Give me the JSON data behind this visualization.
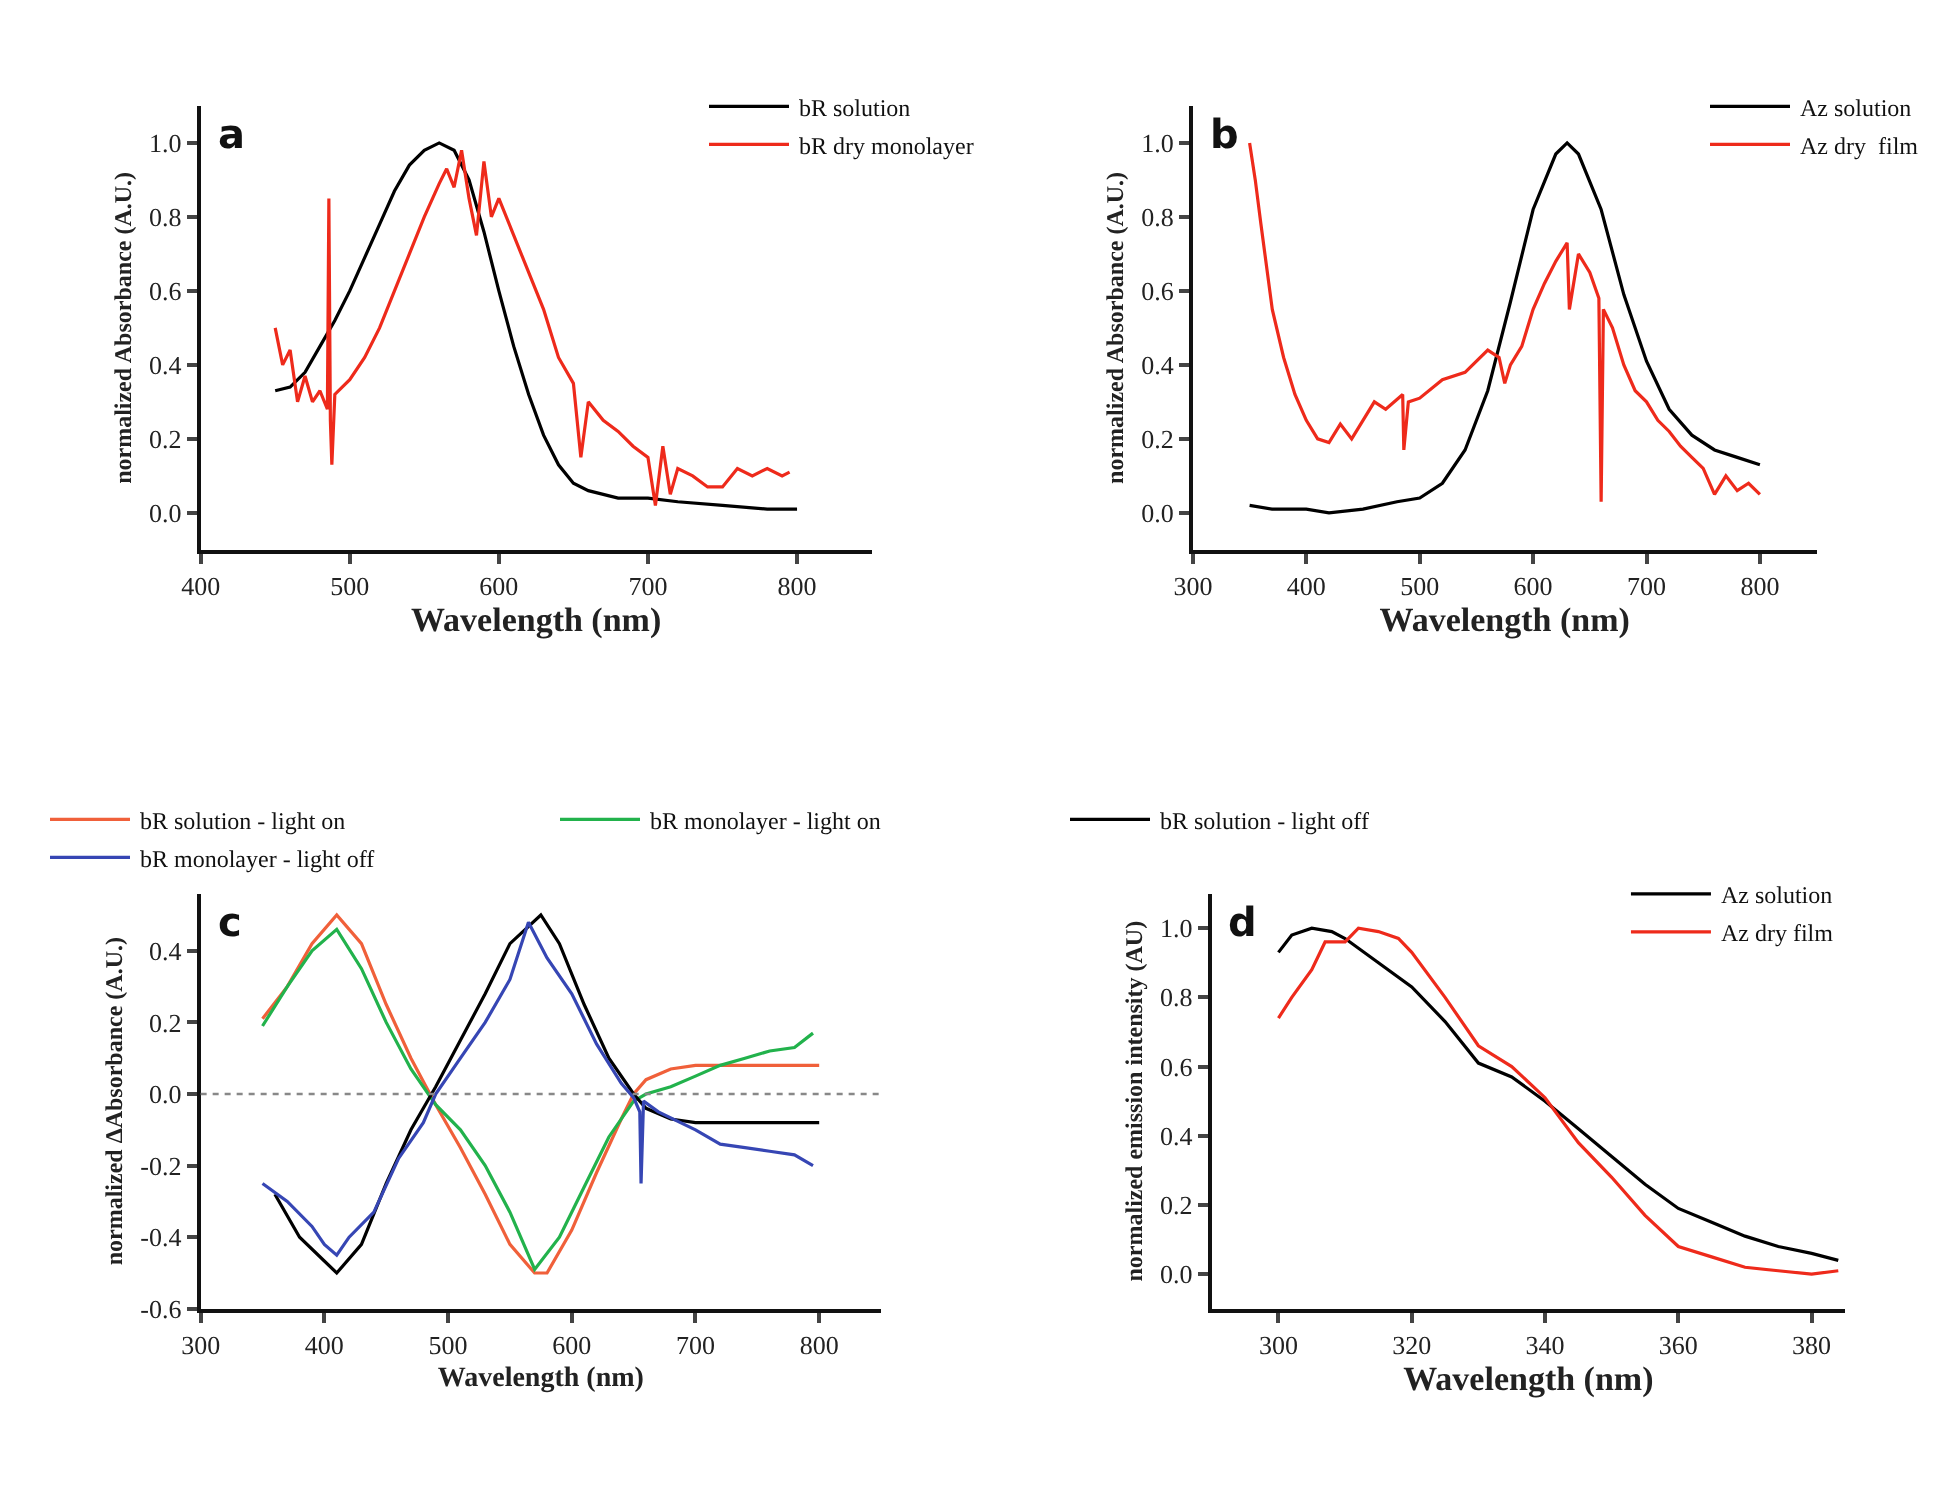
{
  "chart_data": [
    {
      "type": "line",
      "annotations": [
        "a"
      ],
      "xlabel": "Wavelength (nm)",
      "ylabel": "normalized Absorbance (A.U.)",
      "xlim": [
        400,
        850
      ],
      "xticks": [
        400,
        500,
        600,
        700,
        800
      ],
      "ylim": [
        -0.1,
        1.1
      ],
      "yticks": [
        {
          "value": 0,
          "label": "0.0"
        },
        {
          "value": 0.2,
          "label": "0.2"
        },
        {
          "value": 0.4,
          "label": "0.4"
        },
        {
          "value": 0.6,
          "label": "0.6"
        },
        {
          "value": 0.8,
          "label": "0.8"
        },
        {
          "value": 1,
          "label": "1.0"
        }
      ],
      "legend": "top right",
      "series": [
        {
          "name": "bR solution",
          "color": "#000000",
          "x": [
            450,
            460,
            470,
            480,
            490,
            500,
            510,
            520,
            530,
            540,
            550,
            560,
            570,
            580,
            590,
            600,
            610,
            620,
            630,
            640,
            650,
            660,
            680,
            700,
            720,
            750,
            780,
            800
          ],
          "values": [
            0.33,
            0.34,
            0.38,
            0.45,
            0.52,
            0.6,
            0.69,
            0.78,
            0.87,
            0.94,
            0.98,
            1.0,
            0.98,
            0.9,
            0.76,
            0.6,
            0.45,
            0.32,
            0.21,
            0.13,
            0.08,
            0.06,
            0.04,
            0.04,
            0.03,
            0.02,
            0.01,
            0.01
          ]
        },
        {
          "name": "bR dry monolayer",
          "color": "#ee2a1b",
          "x": [
            450,
            455,
            460,
            465,
            470,
            475,
            480,
            485,
            486,
            487,
            488,
            490,
            500,
            510,
            520,
            530,
            540,
            550,
            560,
            565,
            570,
            575,
            580,
            585,
            590,
            595,
            600,
            610,
            620,
            630,
            640,
            650,
            655,
            660,
            670,
            680,
            690,
            700,
            705,
            710,
            715,
            720,
            730,
            740,
            750,
            760,
            770,
            780,
            790,
            795
          ],
          "values": [
            0.5,
            0.4,
            0.44,
            0.3,
            0.37,
            0.3,
            0.33,
            0.28,
            0.85,
            0.25,
            0.13,
            0.32,
            0.36,
            0.42,
            0.5,
            0.6,
            0.7,
            0.8,
            0.89,
            0.93,
            0.88,
            0.98,
            0.85,
            0.75,
            0.95,
            0.8,
            0.85,
            0.75,
            0.65,
            0.55,
            0.42,
            0.35,
            0.15,
            0.3,
            0.25,
            0.22,
            0.18,
            0.15,
            0.02,
            0.18,
            0.05,
            0.12,
            0.1,
            0.07,
            0.07,
            0.12,
            0.1,
            0.12,
            0.1,
            0.11
          ]
        }
      ]
    },
    {
      "type": "line",
      "annotations": [
        "b"
      ],
      "xlabel": "Wavelength (nm)",
      "ylabel": "normalized Absorbance (A.U.)",
      "xlim": [
        300,
        850
      ],
      "xticks": [
        300,
        400,
        500,
        600,
        700,
        800
      ],
      "ylim": [
        -0.1,
        1.1
      ],
      "yticks": [
        {
          "value": 0,
          "label": "0.0"
        },
        {
          "value": 0.2,
          "label": "0.2"
        },
        {
          "value": 0.4,
          "label": "0.4"
        },
        {
          "value": 0.6,
          "label": "0.6"
        },
        {
          "value": 0.8,
          "label": "0.8"
        },
        {
          "value": 1,
          "label": "1.0"
        }
      ],
      "legend": "top right",
      "series": [
        {
          "name": "Az solution",
          "color": "#000000",
          "x": [
            350,
            370,
            400,
            420,
            450,
            480,
            500,
            520,
            540,
            560,
            580,
            600,
            620,
            630,
            640,
            660,
            680,
            700,
            720,
            740,
            760,
            780,
            800
          ],
          "values": [
            0.02,
            0.01,
            0.01,
            0.0,
            0.01,
            0.03,
            0.04,
            0.08,
            0.17,
            0.33,
            0.57,
            0.82,
            0.97,
            1.0,
            0.97,
            0.82,
            0.59,
            0.41,
            0.28,
            0.21,
            0.17,
            0.15,
            0.13
          ]
        },
        {
          "name": "Az dry  film",
          "color": "#ee2a1b",
          "x": [
            350,
            355,
            360,
            370,
            380,
            390,
            400,
            410,
            420,
            430,
            440,
            450,
            460,
            470,
            485,
            486,
            490,
            500,
            520,
            540,
            560,
            570,
            575,
            580,
            590,
            600,
            610,
            620,
            630,
            632,
            640,
            650,
            658,
            660,
            662,
            670,
            680,
            690,
            700,
            710,
            720,
            730,
            740,
            750,
            760,
            770,
            780,
            790,
            800
          ],
          "values": [
            1.0,
            0.9,
            0.78,
            0.55,
            0.42,
            0.32,
            0.25,
            0.2,
            0.19,
            0.24,
            0.2,
            0.25,
            0.3,
            0.28,
            0.32,
            0.17,
            0.3,
            0.31,
            0.36,
            0.38,
            0.44,
            0.42,
            0.35,
            0.4,
            0.45,
            0.55,
            0.62,
            0.68,
            0.73,
            0.55,
            0.7,
            0.65,
            0.58,
            0.03,
            0.55,
            0.5,
            0.4,
            0.33,
            0.3,
            0.25,
            0.22,
            0.18,
            0.15,
            0.12,
            0.05,
            0.1,
            0.06,
            0.08,
            0.05
          ]
        }
      ]
    },
    {
      "type": "line",
      "annotations": [
        "c"
      ],
      "xlabel": "Wavelength (nm)",
      "ylabel": "normalized ΔAbsorbance (A.U.)",
      "xlim": [
        300,
        850
      ],
      "xticks": [
        300,
        400,
        500,
        600,
        700,
        800
      ],
      "ylim": [
        -0.6,
        0.56
      ],
      "yticks": [
        -0.6,
        -0.4,
        -0.2,
        {
          "value": 0,
          "label": "0.0"
        },
        0.2,
        0.4
      ],
      "legend": "top",
      "ref_lines": [
        {
          "axis": "y",
          "value": 0,
          "label": null,
          "color": "#888888",
          "line_style": "dotted"
        }
      ],
      "series": [
        {
          "name": "bR solution - light on",
          "color": "#f0603a",
          "x": [
            350,
            370,
            390,
            410,
            430,
            450,
            470,
            490,
            510,
            530,
            550,
            570,
            580,
            600,
            620,
            640,
            650,
            660,
            680,
            700,
            800
          ],
          "values": [
            0.21,
            0.3,
            0.42,
            0.5,
            0.42,
            0.25,
            0.1,
            -0.03,
            -0.15,
            -0.28,
            -0.42,
            -0.5,
            -0.5,
            -0.38,
            -0.22,
            -0.07,
            0.0,
            0.04,
            0.07,
            0.08,
            0.08
          ]
        },
        {
          "name": "bR monolayer - light on",
          "color": "#22b24c",
          "x": [
            350,
            370,
            390,
            410,
            430,
            450,
            470,
            490,
            510,
            530,
            550,
            570,
            590,
            610,
            630,
            650,
            660,
            680,
            700,
            720,
            740,
            760,
            780,
            795
          ],
          "values": [
            0.19,
            0.3,
            0.4,
            0.46,
            0.35,
            0.2,
            0.07,
            -0.03,
            -0.1,
            -0.2,
            -0.33,
            -0.49,
            -0.4,
            -0.26,
            -0.12,
            -0.02,
            0.0,
            0.02,
            0.05,
            0.08,
            0.1,
            0.12,
            0.13,
            0.17
          ]
        },
        {
          "name": "bR solution - light off",
          "color": "#000000",
          "x": [
            360,
            380,
            410,
            430,
            450,
            470,
            490,
            510,
            530,
            550,
            575,
            590,
            610,
            630,
            650,
            660,
            680,
            700,
            800
          ],
          "values": [
            -0.28,
            -0.4,
            -0.5,
            -0.42,
            -0.25,
            -0.1,
            0.02,
            0.15,
            0.28,
            0.42,
            0.5,
            0.42,
            0.25,
            0.1,
            0.0,
            -0.04,
            -0.07,
            -0.08,
            -0.08
          ]
        },
        {
          "name": "bR monolayer - light off",
          "color": "#3646b4",
          "x": [
            350,
            370,
            390,
            400,
            410,
            420,
            440,
            460,
            480,
            490,
            510,
            530,
            550,
            565,
            580,
            600,
            620,
            640,
            650,
            655,
            656,
            658,
            670,
            700,
            720,
            740,
            760,
            780,
            795
          ],
          "values": [
            -0.25,
            -0.3,
            -0.37,
            -0.42,
            -0.45,
            -0.4,
            -0.33,
            -0.18,
            -0.08,
            0.0,
            0.1,
            0.2,
            0.32,
            0.48,
            0.38,
            0.28,
            0.14,
            0.03,
            -0.01,
            -0.05,
            -0.25,
            -0.02,
            -0.05,
            -0.1,
            -0.14,
            -0.15,
            -0.16,
            -0.17,
            -0.2
          ]
        }
      ]
    },
    {
      "type": "line",
      "annotations": [
        "d"
      ],
      "xlabel": "Wavelength (nm)",
      "ylabel": "normalized emission intensity (AU)",
      "xlim": [
        290,
        385
      ],
      "xticks": [
        300,
        320,
        340,
        360,
        380
      ],
      "ylim": [
        -0.1,
        1.1
      ],
      "yticks": [
        {
          "value": 0,
          "label": "0.0"
        },
        {
          "value": 0.2,
          "label": "0.2"
        },
        {
          "value": 0.4,
          "label": "0.4"
        },
        {
          "value": 0.6,
          "label": "0.6"
        },
        {
          "value": 0.8,
          "label": "0.8"
        },
        {
          "value": 1,
          "label": "1.0"
        }
      ],
      "legend": "top right",
      "series": [
        {
          "name": "Az solution",
          "color": "#000000",
          "x": [
            300,
            302,
            305,
            308,
            310,
            315,
            320,
            325,
            330,
            335,
            340,
            345,
            350,
            355,
            360,
            365,
            370,
            375,
            380,
            384
          ],
          "values": [
            0.93,
            0.98,
            1.0,
            0.99,
            0.97,
            0.9,
            0.83,
            0.73,
            0.61,
            0.57,
            0.5,
            0.42,
            0.34,
            0.26,
            0.19,
            0.15,
            0.11,
            0.08,
            0.06,
            0.04
          ]
        },
        {
          "name": "Az dry film",
          "color": "#ee2a1b",
          "x": [
            300,
            302,
            305,
            307,
            310,
            312,
            315,
            318,
            320,
            325,
            330,
            335,
            340,
            345,
            350,
            355,
            360,
            365,
            370,
            375,
            380,
            384
          ],
          "values": [
            0.74,
            0.8,
            0.88,
            0.96,
            0.96,
            1.0,
            0.99,
            0.97,
            0.93,
            0.8,
            0.66,
            0.6,
            0.51,
            0.38,
            0.28,
            0.17,
            0.08,
            0.05,
            0.02,
            0.01,
            0.0,
            0.01
          ]
        }
      ]
    }
  ]
}
